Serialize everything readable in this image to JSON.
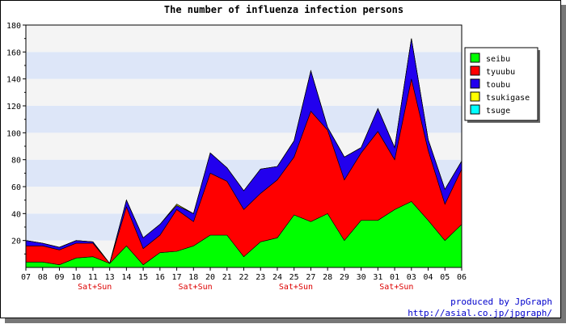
{
  "chart_data": {
    "type": "area",
    "stacked": true,
    "title": "The number of influenza infection persons",
    "categories": [
      "07",
      "08",
      "09",
      "10",
      "11",
      "13",
      "14",
      "15",
      "16",
      "17",
      "18",
      "20",
      "21",
      "22",
      "23",
      "24",
      "25",
      "27",
      "28",
      "29",
      "30",
      "31",
      "01",
      "03",
      "04",
      "05",
      "06"
    ],
    "weekend_label": "Sat+Sun",
    "weekend_categories": [
      "10",
      "17",
      "24",
      "31"
    ],
    "ylim": [
      0,
      180
    ],
    "yticks": [
      20,
      40,
      60,
      80,
      100,
      120,
      140,
      160,
      180
    ],
    "grid": true,
    "legend_position": "right",
    "series": [
      {
        "name": "seibu",
        "color": "#00ff00",
        "values": [
          4,
          4,
          2,
          7,
          8,
          3,
          16,
          2,
          11,
          12,
          16,
          24,
          24,
          8,
          19,
          22,
          39,
          34,
          40,
          20,
          35,
          35,
          43,
          49,
          35,
          20,
          32
        ]
      },
      {
        "name": "tyuubu",
        "color": "#ff0000",
        "values": [
          12,
          12,
          11,
          11,
          10,
          0,
          29,
          12,
          13,
          31,
          18,
          46,
          40,
          35,
          36,
          43,
          43,
          82,
          62,
          45,
          50,
          66,
          37,
          91,
          52,
          27,
          41
        ]
      },
      {
        "name": "toubu",
        "color": "#2200ee",
        "values": [
          4,
          2,
          2,
          2,
          1,
          0,
          5,
          8,
          8,
          3,
          6,
          15,
          10,
          14,
          18,
          10,
          12,
          30,
          2,
          17,
          4,
          17,
          9,
          30,
          8,
          11,
          6
        ]
      },
      {
        "name": "tsukigase",
        "color": "#ffff00",
        "values": [
          0,
          0,
          0,
          0,
          0,
          0,
          0,
          0,
          0,
          1,
          0,
          0,
          0,
          0,
          0,
          0,
          0,
          0,
          0,
          0,
          0,
          0,
          0,
          0,
          0,
          0,
          0
        ]
      },
      {
        "name": "tsuge",
        "color": "#00ffff",
        "values": [
          0,
          0,
          0,
          0,
          0,
          0,
          0,
          0,
          0,
          0,
          0,
          0,
          0,
          0,
          0,
          0,
          0,
          0,
          0,
          0,
          0,
          0,
          0,
          0,
          0,
          0,
          0
        ]
      }
    ]
  },
  "credits": {
    "line1": "produced by JpGraph",
    "line2": "http://asial.co.jp/jpgraph/"
  }
}
